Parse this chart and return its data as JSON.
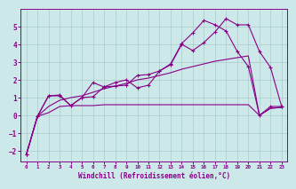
{
  "xlabel": "Windchill (Refroidissement éolien,°C)",
  "xlim": [
    -0.5,
    23.5
  ],
  "ylim": [
    -2.6,
    6.0
  ],
  "yticks": [
    -2,
    -1,
    0,
    1,
    2,
    3,
    4,
    5
  ],
  "xticks": [
    0,
    1,
    2,
    3,
    4,
    5,
    6,
    7,
    8,
    9,
    10,
    11,
    12,
    13,
    14,
    15,
    16,
    17,
    18,
    19,
    20,
    21,
    22,
    23
  ],
  "bg_color": "#cce8e8",
  "grid_color": "#aacccc",
  "line_color": "#880088",
  "line1_y": [
    -2.2,
    -0.05,
    1.1,
    1.1,
    0.55,
    1.0,
    1.05,
    1.6,
    1.85,
    2.0,
    1.55,
    1.7,
    2.5,
    2.85,
    4.0,
    3.65,
    4.1,
    4.7,
    5.45,
    5.1,
    5.1,
    3.6,
    2.7,
    0.5
  ],
  "line2_y": [
    -2.2,
    -0.05,
    1.1,
    1.15,
    0.55,
    1.0,
    1.85,
    1.6,
    1.65,
    1.7,
    2.25,
    2.3,
    2.5,
    2.9,
    4.05,
    4.65,
    5.35,
    5.1,
    4.75,
    3.6,
    2.75,
    0.0,
    0.5,
    0.5
  ],
  "line3_y": [
    -2.2,
    -0.05,
    0.15,
    0.5,
    0.55,
    0.55,
    0.55,
    0.6,
    0.6,
    0.6,
    0.6,
    0.6,
    0.6,
    0.6,
    0.6,
    0.6,
    0.6,
    0.6,
    0.6,
    0.6,
    0.6,
    0.0,
    0.4,
    0.45
  ],
  "line4_y": [
    -2.2,
    -0.05,
    0.5,
    0.85,
    1.0,
    1.1,
    1.3,
    1.5,
    1.65,
    1.8,
    2.0,
    2.1,
    2.25,
    2.4,
    2.6,
    2.75,
    2.9,
    3.05,
    3.15,
    3.25,
    3.35,
    0.0,
    0.4,
    0.45
  ]
}
